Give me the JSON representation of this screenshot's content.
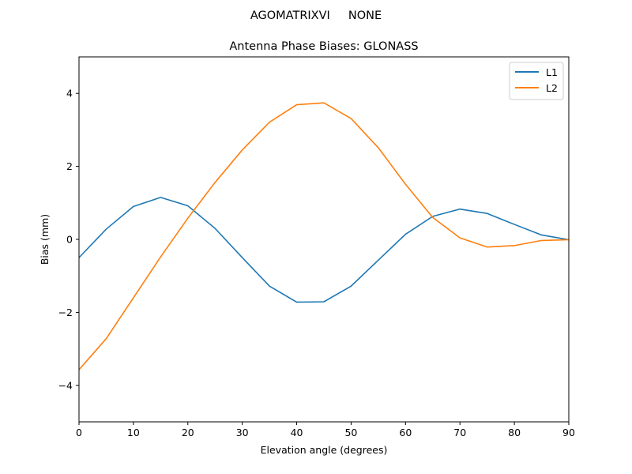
{
  "chart_data": {
    "type": "line",
    "suptitle": "AGOMATRIXVI     NONE",
    "title": "Antenna Phase Biases: GLONASS",
    "xlabel": "Elevation angle (degrees)",
    "ylabel": "Bias (mm)",
    "xlim": [
      0,
      90
    ],
    "ylim": [
      -5,
      5
    ],
    "xticks": [
      0,
      10,
      20,
      30,
      40,
      50,
      60,
      70,
      80,
      90
    ],
    "yticks": [
      -4,
      -2,
      0,
      2,
      4
    ],
    "legend_position": "top-right",
    "x": [
      0,
      5,
      10,
      15,
      20,
      25,
      30,
      35,
      40,
      45,
      50,
      55,
      60,
      65,
      70,
      75,
      80,
      85,
      90
    ],
    "series": [
      {
        "name": "L1",
        "color": "#1f77b4",
        "values": [
          -0.5,
          0.28,
          0.9,
          1.15,
          0.92,
          0.3,
          -0.5,
          -1.28,
          -1.72,
          -1.71,
          -1.28,
          -0.57,
          0.14,
          0.63,
          0.83,
          0.71,
          0.41,
          0.12,
          -0.01
        ]
      },
      {
        "name": "L2",
        "color": "#ff7f0e",
        "values": [
          -3.57,
          -2.72,
          -1.6,
          -0.48,
          0.58,
          1.56,
          2.45,
          3.21,
          3.69,
          3.74,
          3.31,
          2.51,
          1.51,
          0.6,
          0.04,
          -0.21,
          -0.17,
          -0.03,
          -0.01
        ]
      }
    ]
  }
}
